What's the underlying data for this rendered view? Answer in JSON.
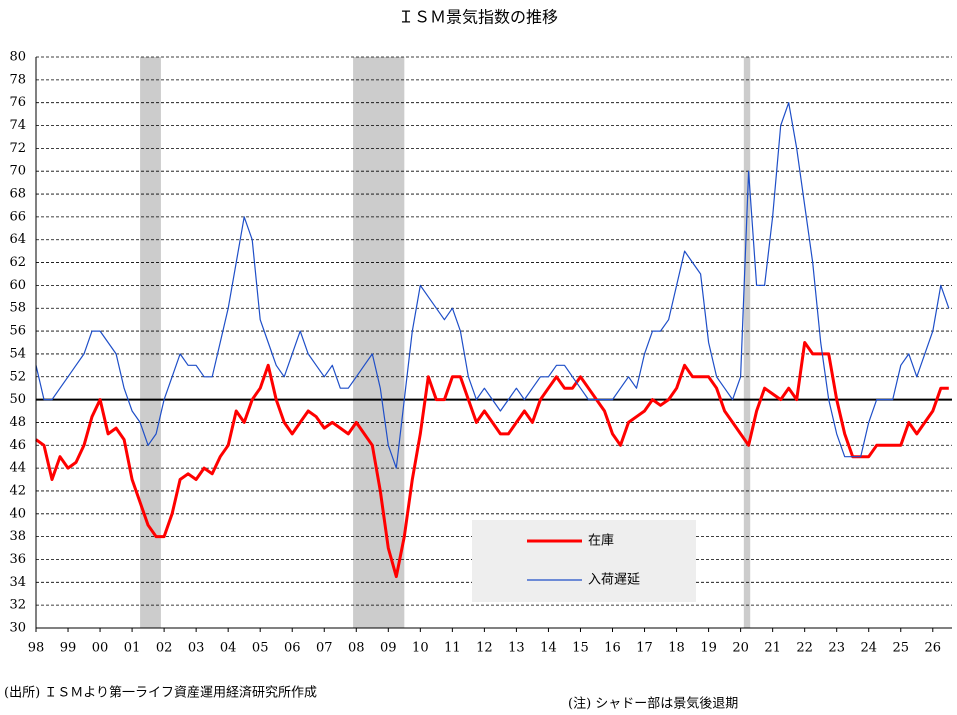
{
  "chart_data": {
    "type": "line",
    "title": "ＩＳＭ景気指数の推移",
    "source": "(出所) ＩＳＭより第一ライフ資産運用経済研究所作成",
    "note": "(注) シャドー部は景気後退期",
    "x": [
      1998,
      1998.25,
      1998.5,
      1998.75,
      1999,
      1999.25,
      1999.5,
      1999.75,
      2000,
      2000.25,
      2000.5,
      2000.75,
      2001,
      2001.25,
      2001.5,
      2001.75,
      2002,
      2002.25,
      2002.5,
      2002.75,
      2003,
      2003.25,
      2003.5,
      2003.75,
      2004,
      2004.25,
      2004.5,
      2004.75,
      2005,
      2005.25,
      2005.5,
      2005.75,
      2006,
      2006.25,
      2006.5,
      2006.75,
      2007,
      2007.25,
      2007.5,
      2007.75,
      2008,
      2008.25,
      2008.5,
      2008.75,
      2009,
      2009.25,
      2009.5,
      2009.75,
      2010,
      2010.25,
      2010.5,
      2010.75,
      2011,
      2011.25,
      2011.5,
      2011.75,
      2012,
      2012.25,
      2012.5,
      2012.75,
      2013,
      2013.25,
      2013.5,
      2013.75,
      2014,
      2014.25,
      2014.5,
      2014.75,
      2015,
      2015.25,
      2015.5,
      2015.75,
      2016,
      2016.25,
      2016.5,
      2016.75,
      2017,
      2017.25,
      2017.5,
      2017.75,
      2018,
      2018.25,
      2018.5,
      2018.75,
      2019,
      2019.25,
      2019.5,
      2019.75,
      2020,
      2020.25,
      2020.5,
      2020.75,
      2021,
      2021.25,
      2021.5,
      2021.75,
      2022,
      2022.25,
      2022.5,
      2022.75,
      2023,
      2023.25,
      2023.5,
      2023.75,
      2024,
      2024.25,
      2024.5,
      2024.75,
      2025,
      2025.25,
      2025.5,
      2025.75,
      2026,
      2026.25,
      2026.5
    ],
    "series": [
      {
        "name": "在庫",
        "color": "#ff0000",
        "width": 3,
        "values": [
          46.5,
          46,
          43,
          45,
          44,
          44.5,
          46,
          48.5,
          50,
          47,
          47.5,
          46.5,
          43,
          41,
          39,
          38,
          38,
          40,
          43,
          43.5,
          43,
          44,
          43.5,
          45,
          46,
          49,
          48,
          50,
          51,
          53,
          50,
          48,
          47,
          48,
          49,
          48.5,
          47.5,
          48,
          47.5,
          47,
          48,
          47,
          46,
          42,
          37,
          34.5,
          38,
          43,
          47,
          52,
          50,
          50,
          52,
          52,
          50,
          48,
          49,
          48,
          47,
          47,
          48,
          49,
          48,
          50,
          51,
          52,
          51,
          51,
          52,
          51,
          50,
          49,
          47,
          46,
          48,
          48.5,
          49,
          50,
          49.5,
          50,
          51,
          53,
          52,
          52,
          52,
          51,
          49,
          48,
          47,
          46,
          49,
          51,
          50.5,
          50,
          51,
          50,
          55,
          54,
          54,
          54,
          50,
          47,
          45,
          45,
          45,
          46,
          46,
          46,
          46,
          48,
          47,
          48,
          49,
          51,
          51
        ]
      },
      {
        "name": "入荷遅延",
        "color": "#1f4fc8",
        "width": 1.2,
        "values": [
          53,
          50,
          50,
          51,
          52,
          53,
          54,
          56,
          56,
          55,
          54,
          51,
          49,
          48,
          46,
          47,
          50,
          52,
          54,
          53,
          53,
          52,
          52,
          55,
          58,
          62,
          66,
          64,
          57,
          55,
          53,
          52,
          54,
          56,
          54,
          53,
          52,
          53,
          51,
          51,
          52,
          53,
          54,
          51,
          46,
          44,
          50,
          56,
          60,
          59,
          58,
          57,
          58,
          56,
          52,
          50,
          51,
          50,
          49,
          50,
          51,
          50,
          51,
          52,
          52,
          53,
          53,
          52,
          51,
          50,
          50,
          50,
          50,
          51,
          52,
          51,
          54,
          56,
          56,
          57,
          60,
          63,
          62,
          61,
          55,
          52,
          51,
          50,
          52,
          70,
          60,
          60,
          66,
          74,
          76,
          72,
          67,
          62,
          55,
          50,
          47,
          45,
          45,
          45,
          48,
          50,
          50,
          50,
          53,
          54,
          52,
          54,
          56,
          60,
          58
        ]
      }
    ],
    "xlim": [
      1998,
      2026.6
    ],
    "xticks": [
      {
        "value": 1998,
        "label": "98"
      },
      {
        "value": 1999,
        "label": "99"
      },
      {
        "value": 2000,
        "label": "00"
      },
      {
        "value": 2001,
        "label": "01"
      },
      {
        "value": 2002,
        "label": "02"
      },
      {
        "value": 2003,
        "label": "03"
      },
      {
        "value": 2004,
        "label": "04"
      },
      {
        "value": 2005,
        "label": "05"
      },
      {
        "value": 2006,
        "label": "06"
      },
      {
        "value": 2007,
        "label": "07"
      },
      {
        "value": 2008,
        "label": "08"
      },
      {
        "value": 2009,
        "label": "09"
      },
      {
        "value": 2010,
        "label": "10"
      },
      {
        "value": 2011,
        "label": "11"
      },
      {
        "value": 2012,
        "label": "12"
      },
      {
        "value": 2013,
        "label": "13"
      },
      {
        "value": 2014,
        "label": "14"
      },
      {
        "value": 2015,
        "label": "15"
      },
      {
        "value": 2016,
        "label": "16"
      },
      {
        "value": 2017,
        "label": "17"
      },
      {
        "value": 2018,
        "label": "18"
      },
      {
        "value": 2019,
        "label": "19"
      },
      {
        "value": 2020,
        "label": "20"
      },
      {
        "value": 2021,
        "label": "21"
      },
      {
        "value": 2022,
        "label": "22"
      },
      {
        "value": 2023,
        "label": "23"
      },
      {
        "value": 2024,
        "label": "24"
      },
      {
        "value": 2025,
        "label": "25"
      },
      {
        "value": 2026,
        "label": "26"
      }
    ],
    "ylim": [
      30,
      80
    ],
    "yticks": [
      30,
      32,
      34,
      36,
      38,
      40,
      42,
      44,
      46,
      48,
      50,
      52,
      54,
      56,
      58,
      60,
      62,
      64,
      66,
      68,
      70,
      72,
      74,
      76,
      78,
      80
    ],
    "grid": true,
    "reference_line": 50,
    "recessions": [
      [
        2001.25,
        2001.9
      ],
      [
        2007.9,
        2009.5
      ],
      [
        2020.1,
        2020.3
      ]
    ]
  }
}
